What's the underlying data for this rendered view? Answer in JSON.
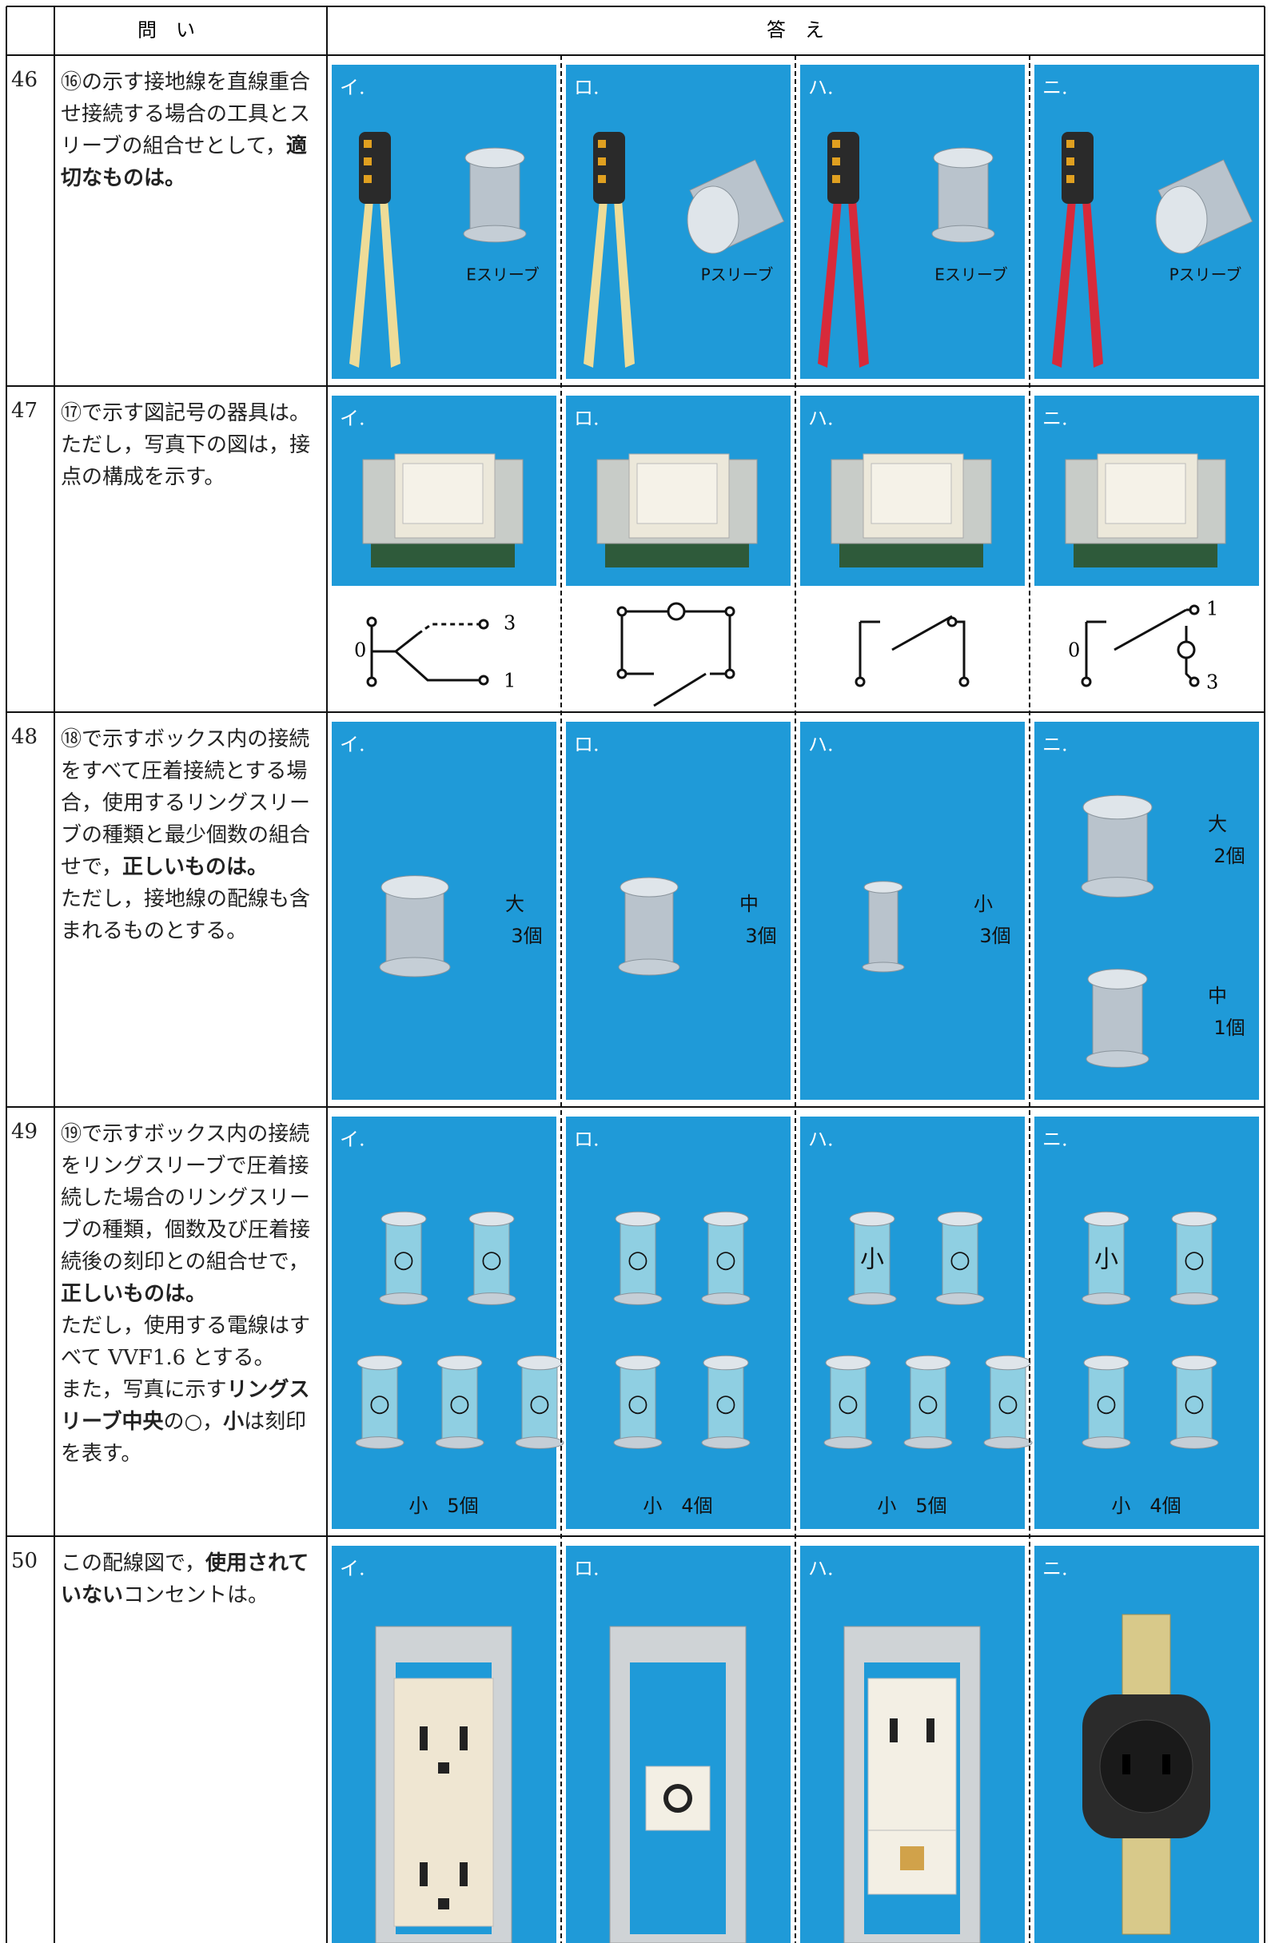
{
  "header": {
    "question": "問　い",
    "answer": "答　え"
  },
  "rows": [
    {
      "number": "46",
      "question": [
        [
          {
            "text": "⑯の示す接地線を直線重合せ接続する場合の工具とスリーブの組合せとして，"
          },
          {
            "text": "適切なものは。",
            "bold": true
          }
        ]
      ],
      "options": [
        {
          "label": "イ.",
          "caption": "Eスリーブ"
        },
        {
          "label": "ロ.",
          "caption": "Pスリーブ"
        },
        {
          "label": "ハ.",
          "caption": "Eスリーブ"
        },
        {
          "label": "ニ.",
          "caption": "Pスリーブ"
        }
      ]
    },
    {
      "number": "47",
      "question": [
        [
          {
            "text": "⑰で示す図記号の器具は。"
          }
        ],
        [
          {
            "text": "ただし，写真下の図は，接点の構成を示す。"
          }
        ]
      ],
      "options": [
        {
          "label": "イ.",
          "terminals": [
            "0",
            "3",
            "1"
          ]
        },
        {
          "label": "ロ."
        },
        {
          "label": "ハ."
        },
        {
          "label": "ニ.",
          "terminals": [
            "0",
            "1",
            "3"
          ]
        }
      ]
    },
    {
      "number": "48",
      "question": [
        [
          {
            "text": "⑱で示すボックス内の接続をすべて圧着接続とする場合，使用するリングスリーブの種類と最少個数の組合せで，"
          },
          {
            "text": "正しいものは。",
            "bold": true
          }
        ],
        [
          {
            "text": "ただし，接地線の配線も含まれるものとする。"
          }
        ]
      ],
      "options": [
        {
          "label": "イ.",
          "sleeves": [
            {
              "size": "大",
              "count": "3個"
            }
          ]
        },
        {
          "label": "ロ.",
          "sleeves": [
            {
              "size": "中",
              "count": "3個"
            }
          ]
        },
        {
          "label": "ハ.",
          "sleeves": [
            {
              "size": "小",
              "count": "3個"
            }
          ]
        },
        {
          "label": "ニ.",
          "sleeves": [
            {
              "size": "大",
              "count": "2個"
            },
            {
              "size": "中",
              "count": "1個"
            }
          ]
        }
      ]
    },
    {
      "number": "49",
      "question": [
        [
          {
            "text": "⑲で示すボックス内の接続をリングスリーブで圧着接続した場合のリングスリーブの種類，個数及び圧着接続後の刻印との組合せで，"
          }
        ],
        [
          {
            "text": "正しいものは。",
            "bold": true
          }
        ],
        [
          {
            "text": "ただし，使用する電線はすべて VVF1.6 とする。"
          }
        ],
        [
          {
            "text": "また，写真に示す"
          },
          {
            "text": "リングスリーブ中央",
            "bold": true
          },
          {
            "text": "の○，"
          },
          {
            "text": "小",
            "bold": true
          },
          {
            "text": "は刻印を表す。"
          }
        ]
      ],
      "options": [
        {
          "label": "イ.",
          "marks": [
            "○",
            "○",
            "○",
            "○",
            "○"
          ],
          "caption": "小　5個"
        },
        {
          "label": "ロ.",
          "marks": [
            "○",
            "○",
            "○",
            "○"
          ],
          "caption": "小　4個"
        },
        {
          "label": "ハ.",
          "marks": [
            "小",
            "○",
            "○",
            "○",
            "○"
          ],
          "caption": "小　5個"
        },
        {
          "label": "ニ.",
          "marks": [
            "小",
            "○",
            "○",
            "○"
          ],
          "caption": "小　4個"
        }
      ]
    },
    {
      "number": "50",
      "question": [
        [
          {
            "text": "この配線図で，"
          },
          {
            "text": "使用されていない",
            "bold": true
          },
          {
            "text": "コンセントは。"
          }
        ]
      ],
      "options": [
        {
          "label": "イ."
        },
        {
          "label": "ロ."
        },
        {
          "label": "ハ."
        },
        {
          "label": "ニ."
        }
      ]
    }
  ]
}
